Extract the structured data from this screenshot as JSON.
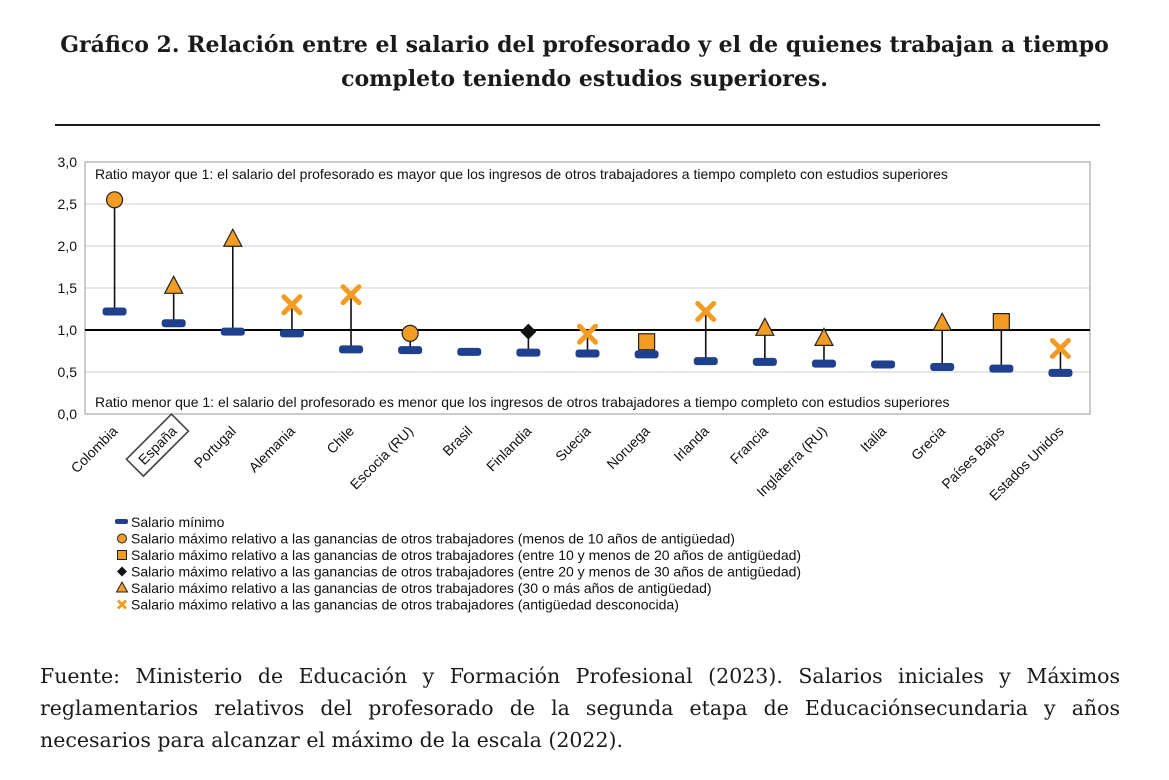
{
  "header": {
    "title": "Gráfico 2. Relación entre el salario del profesorado y el de quienes trabajan a tiempo completo teniendo estudios superiores."
  },
  "footer": {
    "source": "Fuente: Ministerio de Educación y Formación Profesional (2023). Salarios iniciales y Máximos reglamentarios relativos del profesorado de la segunda etapa de Educaciónsecundaria y años necesarios para alcanzar el máximo de la escala (2022)."
  },
  "colors": {
    "minimum": "#1f3f8f",
    "marker": "#f39c24",
    "line": "#000000",
    "grid": "#cfcfcf"
  },
  "chart_data": {
    "type": "scatter",
    "title": "",
    "xlabel": "",
    "ylabel": "",
    "ylim": [
      0,
      3
    ],
    "yticks": [
      "0,0",
      "0,5",
      "1,0",
      "1,5",
      "2,0",
      "2,5",
      "3,0"
    ],
    "reference_line": 1.0,
    "annotation_top": "Ratio mayor que 1: el salario del profesorado es mayor que los ingresos de otros trabajadores a tiempo completo con estudios superiores",
    "annotation_bottom": "Ratio menor que 1: el salario del profesorado es menor que los ingresos de otros trabajadores a tiempo completo con estudios superiores",
    "highlighted_category": "España",
    "categories": [
      "Colombia",
      "España",
      "Portugal",
      "Alemania",
      "Chile",
      "Escocia (RU)",
      "Brasil",
      "Finlandia",
      "Suecia",
      "Noruega",
      "Irlanda",
      "Francia",
      "Inglaterra (RU)",
      "Italia",
      "Grecia",
      "Países Bajos",
      "Estados Unidos"
    ],
    "series": [
      {
        "name": "Salario mínimo",
        "marker": "dash",
        "values": [
          1.22,
          1.08,
          0.98,
          0.96,
          0.77,
          0.76,
          0.74,
          0.73,
          0.72,
          0.71,
          0.63,
          0.62,
          0.6,
          0.59,
          0.56,
          0.54,
          0.49
        ]
      },
      {
        "name": "Salario máximo relativo a las ganancias de otros trabajadores (menos de 10 años de antigüedad)",
        "marker": "circle",
        "values": [
          2.55,
          null,
          null,
          null,
          null,
          0.96,
          null,
          null,
          null,
          null,
          null,
          null,
          null,
          null,
          null,
          null,
          null
        ]
      },
      {
        "name": "Salario máximo relativo a las ganancias de otros trabajadores (entre 10 y menos de 20 años de antigüedad)",
        "marker": "square",
        "values": [
          null,
          null,
          null,
          null,
          null,
          null,
          null,
          null,
          null,
          0.86,
          null,
          null,
          null,
          null,
          null,
          1.1,
          null
        ]
      },
      {
        "name": "Salario máximo relativo a las ganancias de otros trabajadores (entre 20 y menos de 30 años de antigüedad)",
        "marker": "diamond",
        "values": [
          null,
          null,
          null,
          null,
          null,
          null,
          null,
          0.98,
          null,
          null,
          null,
          null,
          null,
          null,
          null,
          null,
          null
        ]
      },
      {
        "name": "Salario máximo relativo a las ganancias de otros trabajadores (30 o más años de antigüedad)",
        "marker": "triangle",
        "values": [
          null,
          1.52,
          2.08,
          null,
          null,
          null,
          null,
          null,
          null,
          null,
          null,
          1.02,
          0.9,
          null,
          1.08,
          null,
          null
        ]
      },
      {
        "name": "Salario máximo relativo a las ganancias de otros trabajadores (antigüedad desconocida)",
        "marker": "cross",
        "values": [
          null,
          null,
          null,
          1.3,
          1.42,
          null,
          null,
          null,
          0.95,
          null,
          1.22,
          null,
          null,
          null,
          null,
          null,
          0.78
        ]
      }
    ]
  }
}
